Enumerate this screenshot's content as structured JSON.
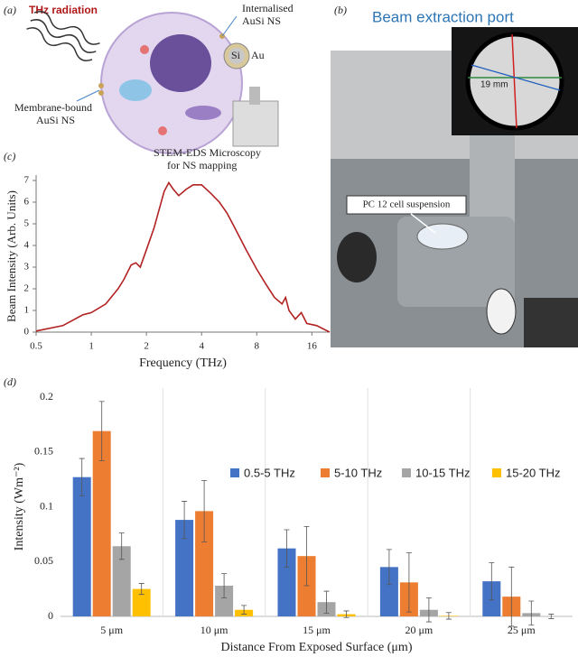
{
  "panel_a": {
    "label": "(a)",
    "thz": "THz radiation",
    "internalised": [
      "Internalised",
      "AuSi NS"
    ],
    "membrane": [
      "Membrane-bound",
      "AuSi NS"
    ],
    "si": "Si",
    "au": "Au",
    "microscopy": [
      "STEM-EDS Microscopy",
      "for NS mapping"
    ]
  },
  "panel_b": {
    "label": "(b)",
    "title": "Beam extraction port",
    "scale": "19 mm",
    "callout": "PC 12 cell suspension"
  },
  "chart_data": [
    {
      "type": "line",
      "panel_label": "(c)",
      "x_label": "Frequency (THz)",
      "y_label": "Beam Intensity (Arb. Units)",
      "color": "#b22222",
      "xscale": "log",
      "x": [
        0.5,
        0.7,
        0.9,
        1.0,
        1.2,
        1.4,
        1.5,
        1.65,
        1.75,
        1.85,
        2.0,
        2.2,
        2.5,
        2.65,
        2.8,
        3.0,
        3.3,
        3.6,
        4.0,
        4.5,
        5.0,
        5.5,
        6.0,
        7.0,
        8.0,
        9.0,
        10,
        11,
        11.5,
        12,
        13,
        14,
        15,
        17,
        20
      ],
      "values": [
        0.05,
        0.3,
        0.8,
        0.9,
        1.3,
        2.0,
        2.4,
        3.1,
        3.2,
        3.0,
        3.8,
        4.8,
        6.5,
        6.9,
        6.6,
        6.3,
        6.6,
        6.8,
        6.8,
        6.4,
        6.0,
        5.5,
        4.9,
        3.8,
        2.9,
        2.2,
        1.6,
        1.3,
        1.6,
        1.0,
        0.6,
        0.9,
        0.4,
        0.3,
        0.0
      ],
      "xlim": [
        0.5,
        20
      ],
      "xticks": [
        0.5,
        1,
        2,
        4,
        8,
        16
      ],
      "ylim": [
        0,
        7
      ],
      "yticks": [
        0,
        1,
        2,
        3,
        4,
        5,
        6,
        7
      ]
    },
    {
      "type": "bar",
      "panel_label": "(d)",
      "x_label": "Distance From Exposed Surface  (μm)",
      "y_label": "Intensity (Wm⁻²)",
      "categories": [
        "5 μm",
        "10 μm",
        "15 μm",
        "20 μm",
        "25 μm"
      ],
      "series": [
        {
          "name": "0.5-5 THz",
          "color": "#4472c4",
          "values": [
            0.127,
            0.088,
            0.062,
            0.045,
            0.032
          ],
          "errors": [
            0.017,
            0.017,
            0.017,
            0.016,
            0.017
          ]
        },
        {
          "name": "5-10 THz",
          "color": "#ed7d31",
          "values": [
            0.169,
            0.096,
            0.055,
            0.031,
            0.018
          ],
          "errors": [
            0.027,
            0.028,
            0.027,
            0.027,
            0.027
          ]
        },
        {
          "name": "10-15 THz",
          "color": "#a5a5a5",
          "values": [
            0.064,
            0.028,
            0.013,
            0.006,
            0.003
          ],
          "errors": [
            0.012,
            0.011,
            0.01,
            0.011,
            0.011
          ]
        },
        {
          "name": "15-20 THz",
          "color": "#ffc000",
          "values": [
            0.025,
            0.006,
            0.002,
            0.0005,
            0.0
          ],
          "errors": [
            0.005,
            0.004,
            0.003,
            0.003,
            0.002
          ]
        }
      ],
      "ylim": [
        0,
        0.2
      ],
      "yticks": [
        0,
        0.05,
        0.1,
        0.15,
        0.2
      ],
      "legend": "top-right"
    }
  ]
}
